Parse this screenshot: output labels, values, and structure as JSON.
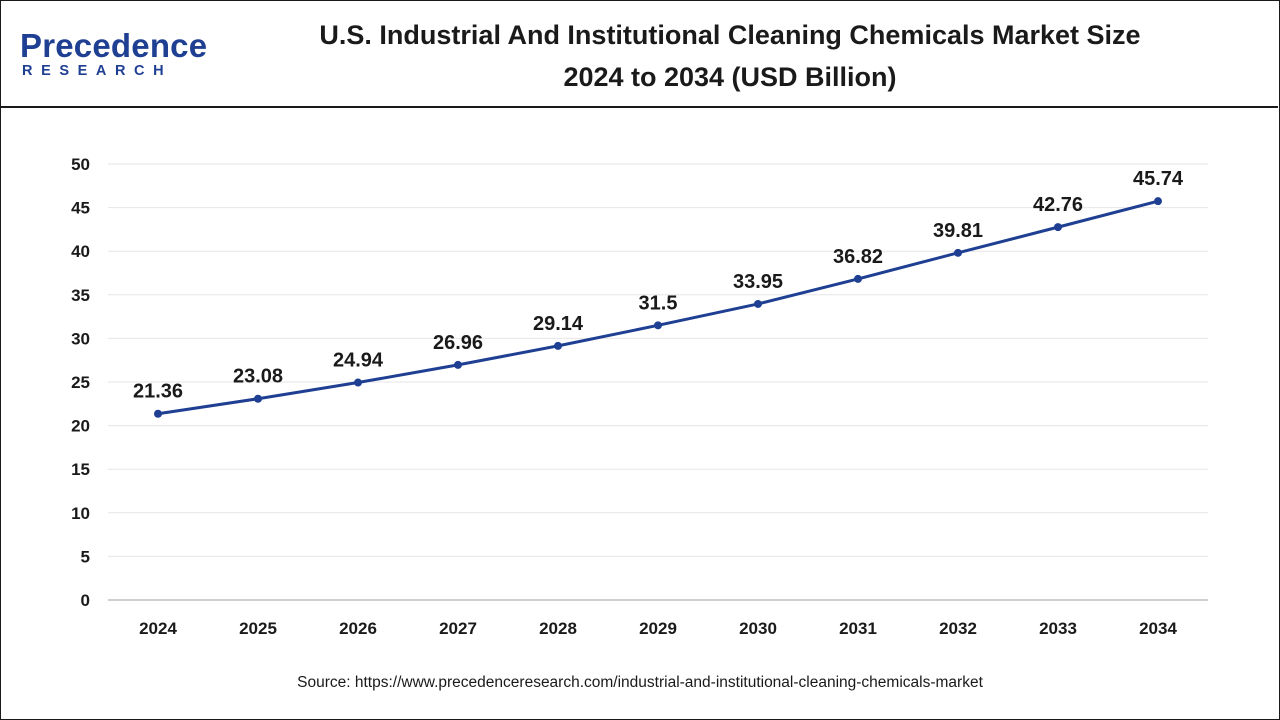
{
  "brand": {
    "name_main": "Precedence",
    "name_sub": "RESEARCH",
    "color": "#1f3f93"
  },
  "header": {
    "title_line1": "U.S. Industrial And Institutional Cleaning Chemicals Market Size",
    "title_line2": "2024 to 2034 (USD Billion)"
  },
  "chart_data": {
    "type": "line",
    "title": "U.S. Industrial And Institutional Cleaning Chemicals Market Size 2024 to 2034 (USD Billion)",
    "xlabel": "",
    "ylabel": "",
    "categories": [
      "2024",
      "2025",
      "2026",
      "2027",
      "2028",
      "2029",
      "2030",
      "2031",
      "2032",
      "2033",
      "2034"
    ],
    "series": [
      {
        "name": "Market Size (USD Billion)",
        "values": [
          21.36,
          23.08,
          24.94,
          26.96,
          29.14,
          31.5,
          33.95,
          36.82,
          39.81,
          42.76,
          45.74
        ],
        "labels": [
          "21.36",
          "23.08",
          "24.94",
          "26.96",
          "29.14",
          "31.5",
          "33.95",
          "36.82",
          "39.81",
          "42.76",
          "45.74"
        ],
        "color": "#1f3f93"
      }
    ],
    "ylim": [
      0,
      50
    ],
    "yticks": [
      0,
      5,
      10,
      15,
      20,
      25,
      30,
      35,
      40,
      45,
      50
    ],
    "grid": true,
    "legend": "none"
  },
  "footer": {
    "source": "Source: https://www.precedenceresearch.com/industrial-and-institutional-cleaning-chemicals-market"
  }
}
